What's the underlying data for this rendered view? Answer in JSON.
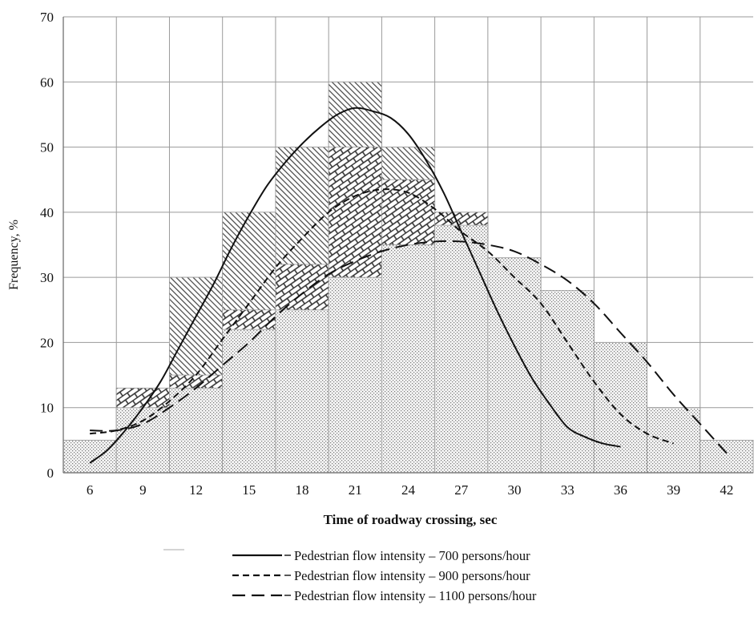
{
  "chart_data": {
    "type": "bar",
    "xlabel": "Time of roadway crossing, sec",
    "ylabel": "Frequency, %",
    "x_ticks": [
      6,
      9,
      12,
      15,
      18,
      21,
      24,
      27,
      30,
      33,
      36,
      39,
      42
    ],
    "y_ticks": [
      0,
      10,
      20,
      30,
      40,
      50,
      60,
      70
    ],
    "ylim": [
      0,
      70
    ],
    "grid": true,
    "legend_position": "bottom",
    "histograms": [
      {
        "pattern": "diagonal-hatch",
        "values": [
          5,
          13,
          30,
          40,
          50,
          60,
          50,
          40,
          30,
          20,
          10,
          5,
          0
        ]
      },
      {
        "pattern": "brick-hatch",
        "values": [
          5,
          13,
          15,
          25,
          32,
          50,
          45,
          40,
          33,
          28,
          20,
          10,
          5
        ]
      },
      {
        "pattern": "dotted",
        "values": [
          5,
          10,
          13,
          22,
          25,
          30,
          35,
          38,
          33,
          28,
          20,
          10,
          5
        ]
      }
    ],
    "series": [
      {
        "name": "Pedestrian flow intensity – 700 persons/hour",
        "dash": "solid",
        "x": [
          6,
          7,
          8,
          9,
          10,
          11,
          12,
          13,
          14,
          15,
          16,
          17,
          18,
          19,
          20,
          21,
          22,
          23,
          24,
          25,
          26,
          27,
          28,
          29,
          30,
          31,
          32,
          33,
          34,
          35,
          36
        ],
        "y": [
          1.5,
          3.5,
          6.5,
          10,
          14,
          19,
          24,
          29,
          34.5,
          39.5,
          44,
          47.5,
          50.5,
          53,
          55,
          56,
          55.5,
          54.5,
          52,
          48,
          43,
          37,
          31,
          25,
          19.5,
          14.5,
          10.5,
          7,
          5.5,
          4.5,
          4
        ]
      },
      {
        "name": "Pedestrian flow intensity – 900 persons/hour",
        "dash": "short",
        "x": [
          6,
          7.5,
          9,
          10.5,
          12,
          13.5,
          15,
          16.5,
          18,
          19.5,
          21,
          22.5,
          24,
          25.5,
          27,
          28.5,
          30,
          31.5,
          33,
          34.5,
          36,
          37.5,
          39
        ],
        "y": [
          6,
          6.5,
          8,
          11,
          15,
          20.5,
          26,
          31.5,
          36,
          40,
          42.5,
          43.5,
          43,
          40.5,
          37,
          34,
          30,
          26,
          20,
          14,
          9,
          6,
          4.5
        ]
      },
      {
        "name": "Pedestrian flow intensity – 1100 persons/hour",
        "dash": "long",
        "x": [
          6,
          7.5,
          9,
          10.5,
          12,
          13.5,
          15,
          16.5,
          18,
          19.5,
          21,
          22.5,
          24,
          25.5,
          27,
          28.5,
          30,
          31.5,
          33,
          34.5,
          36,
          37.5,
          39,
          40.5,
          42
        ],
        "y": [
          6.5,
          6.5,
          7.5,
          10,
          13,
          16.5,
          20,
          24,
          27.5,
          30.5,
          32.5,
          34,
          35,
          35.5,
          35.5,
          35,
          34,
          32,
          29.5,
          26,
          21.5,
          17,
          12,
          7.5,
          3
        ]
      }
    ]
  }
}
